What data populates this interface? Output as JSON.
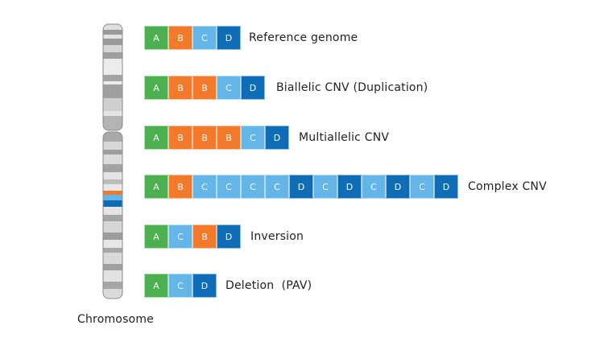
{
  "colors": {
    "A": "#4caf50",
    "B": "#f37a2a",
    "C": "#64b5e8",
    "D": "#0f6db8"
  },
  "chromosome_label": "Chromosome",
  "rows": [
    {
      "label": "Reference genome",
      "segments": [
        "A",
        "B",
        "C",
        "D"
      ]
    },
    {
      "label": "Biallelic CNV (Duplication)",
      "segments": [
        "A",
        "B",
        "B",
        "C",
        "D"
      ]
    },
    {
      "label": "Multiallelic CNV",
      "segments": [
        "A",
        "B",
        "B",
        "B",
        "C",
        "D"
      ]
    },
    {
      "label": "Complex CNV",
      "segments": [
        "A",
        "B",
        "C",
        "C",
        "C",
        "C",
        "D",
        "C",
        "D",
        "C",
        "D",
        "C",
        "D"
      ]
    },
    {
      "label": "Inversion",
      "segments": [
        "A",
        "C",
        "B",
        "D"
      ]
    },
    {
      "label": "Deletion  (PAV)",
      "segments": [
        "A",
        "C",
        "D"
      ]
    }
  ]
}
